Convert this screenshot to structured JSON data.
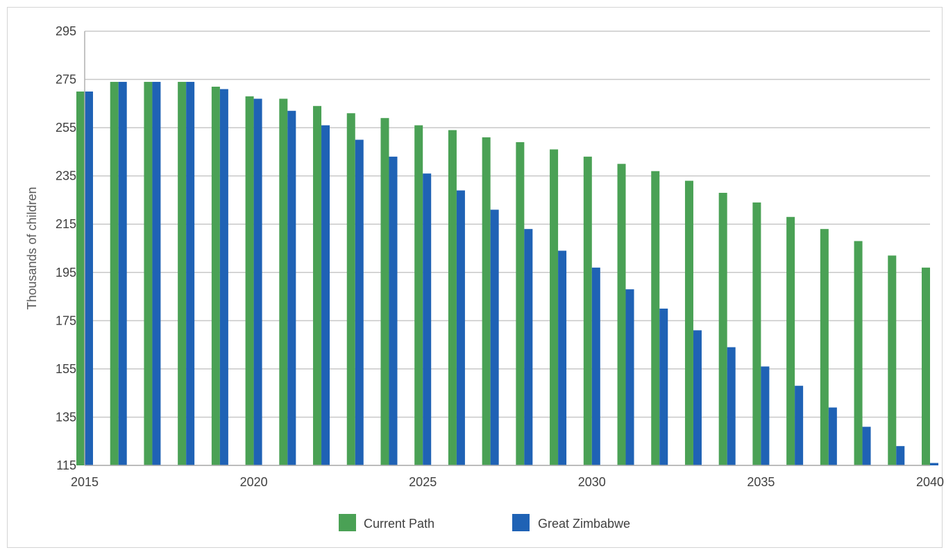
{
  "chart_data": {
    "type": "bar",
    "title": "",
    "xlabel": "",
    "ylabel": "Thousands of children",
    "ylim": [
      115,
      295
    ],
    "yticks": [
      115,
      135,
      155,
      175,
      195,
      215,
      235,
      255,
      275,
      295
    ],
    "xlim": [
      2015,
      2040
    ],
    "xticks": [
      2015,
      2020,
      2025,
      2030,
      2035,
      2040
    ],
    "grid": true,
    "legend_position": "bottom",
    "categories": [
      2015,
      2016,
      2017,
      2018,
      2019,
      2020,
      2021,
      2022,
      2023,
      2024,
      2025,
      2026,
      2027,
      2028,
      2029,
      2030,
      2031,
      2032,
      2033,
      2034,
      2035,
      2036,
      2037,
      2038,
      2039,
      2040
    ],
    "series": [
      {
        "name": "Current Path",
        "color": "#4aa155",
        "values": [
          270,
          274,
          274,
          274,
          272,
          268,
          267,
          264,
          261,
          259,
          256,
          254,
          251,
          249,
          246,
          243,
          240,
          237,
          233,
          228,
          224,
          218,
          213,
          208,
          202,
          197
        ]
      },
      {
        "name": "Great Zimbabwe",
        "color": "#1f62b5",
        "values": [
          270,
          274,
          274,
          274,
          271,
          267,
          262,
          256,
          250,
          243,
          236,
          229,
          221,
          213,
          204,
          197,
          188,
          180,
          171,
          164,
          156,
          148,
          139,
          131,
          123,
          116
        ]
      }
    ]
  }
}
